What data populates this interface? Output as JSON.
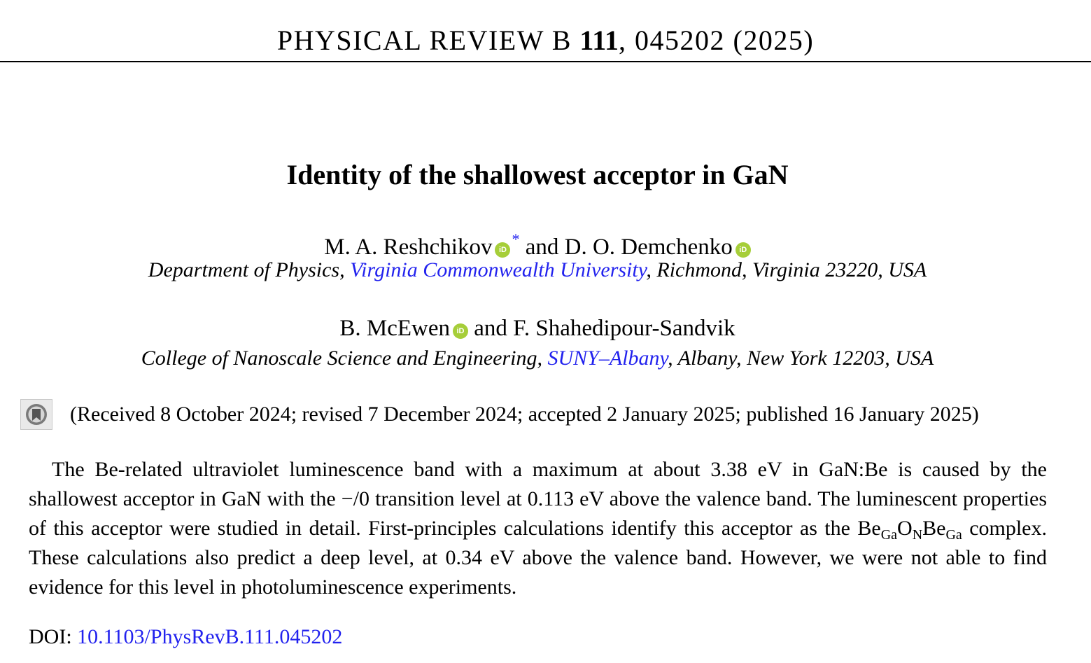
{
  "journal": {
    "name": "PHYSICAL REVIEW B",
    "volume": "111",
    "article_id_year": ", 045202 (2025)"
  },
  "title": "Identity of the shallowest acceptor in GaN",
  "authors_group_1": {
    "author_1": "M. A. Reshchikov",
    "corresponding_mark": "*",
    "and": " and ",
    "author_2": "D. O. Demchenko"
  },
  "affiliation_1": {
    "prefix": "Department of Physics, ",
    "link": "Virginia Commonwealth University",
    "suffix": ", Richmond, Virginia 23220, USA"
  },
  "authors_group_2": {
    "author_1": "B. McEwen",
    "and": " and ",
    "author_2": "F. Shahedipour-Sandvik"
  },
  "affiliation_2": {
    "prefix": "College of Nanoscale Science and Engineering, ",
    "link": "SUNY–Albany",
    "suffix": ", Albany, New York 12203, USA"
  },
  "orcid_label": "iD",
  "dates": "(Received 8 October 2024; revised 7 December 2024; accepted 2 January 2025; published 16 January 2025)",
  "abstract": {
    "part1": "The Be-related ultraviolet luminescence band with a maximum at about 3.38 eV in GaN:Be is caused by the shallowest acceptor in GaN with the −/0 transition level at 0.113 eV above the valence band. The luminescent properties of this acceptor were studied in detail. First-principles calculations identify this acceptor as the ",
    "complex_be1": "Be",
    "complex_sub1": "Ga",
    "complex_o": "O",
    "complex_sub2": "N",
    "complex_be2": "Be",
    "complex_sub3": "Ga",
    "part2": " complex. These calculations also predict a deep level, at 0.34 eV above the valence band. However, we were not able to find evidence for this level in photoluminescence experiments."
  },
  "doi": {
    "label": "DOI: ",
    "value": "10.1103/PhysRevB.111.045202"
  },
  "colors": {
    "link": "#2222ee",
    "orcid": "#a6ce39"
  },
  "icons": {
    "orcid": "orcid-icon",
    "check_for_updates": "check-for-updates-icon"
  }
}
